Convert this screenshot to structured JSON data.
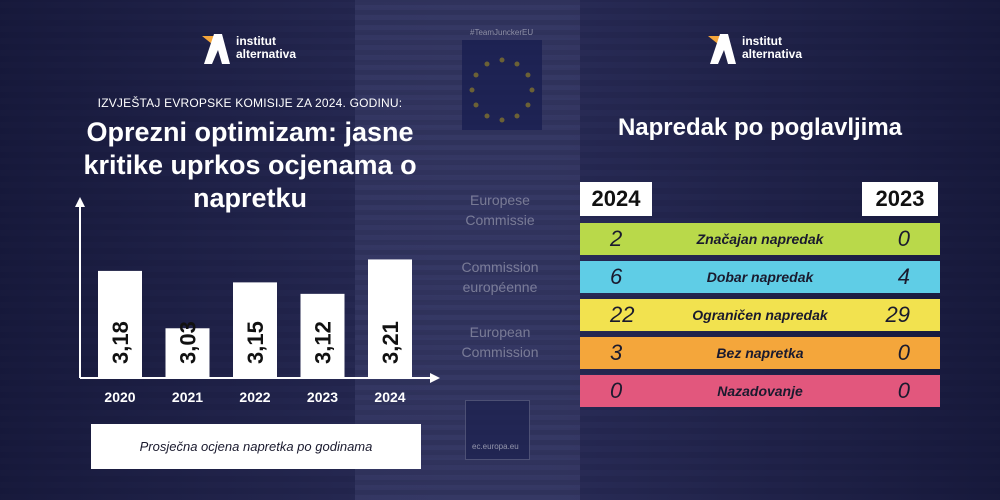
{
  "logo_left": {
    "line1": "institut",
    "line2": "alternativa"
  },
  "logo_right": {
    "line1": "institut",
    "line2": "alternativa"
  },
  "background": {
    "hashtag": "#TeamJunckerEU",
    "labels": [
      "Europese Commissie",
      "Commission européenne",
      "European Commission"
    ],
    "ec_url": "ec.europa.eu"
  },
  "left": {
    "subtitle": "IZVJEŠTAJ EVROPSKE KOMISIJE ZA 2024. GODINU:",
    "title": "Oprezni optimizam: jasne kritike uprkos ocjenama o napretku",
    "legend": "Prosječna ocjena napretka po godinama"
  },
  "chart_data": {
    "type": "bar",
    "title": "Prosječna ocjena napretka po godinama",
    "categories": [
      "2020",
      "2021",
      "2022",
      "2023",
      "2024"
    ],
    "values": [
      3.18,
      3.03,
      3.15,
      3.12,
      3.21
    ],
    "value_labels": [
      "3,18",
      "3,03",
      "3,15",
      "3,12",
      "3,21"
    ],
    "xlabel": "",
    "ylabel": "",
    "ylim": [
      2.9,
      3.3
    ],
    "grid": false
  },
  "right": {
    "title": "Napredak po poglavljima",
    "year_left": "2024",
    "year_right": "2023",
    "rows": [
      {
        "label": "Značajan napredak",
        "v2024": "2",
        "v2023": "0",
        "color": "#b9d94a"
      },
      {
        "label": "Dobar napredak",
        "v2024": "6",
        "v2023": "4",
        "color": "#5fcde6"
      },
      {
        "label": "Ograničen napredak",
        "v2024": "22",
        "v2023": "29",
        "color": "#f2e24f"
      },
      {
        "label": "Bez napretka",
        "v2024": "3",
        "v2023": "0",
        "color": "#f4a63b"
      },
      {
        "label": "Nazadovanje",
        "v2024": "0",
        "v2023": "0",
        "color": "#e2577d"
      }
    ]
  },
  "colors": {
    "accent": "#f4a63b",
    "bar": "#ffffff"
  }
}
